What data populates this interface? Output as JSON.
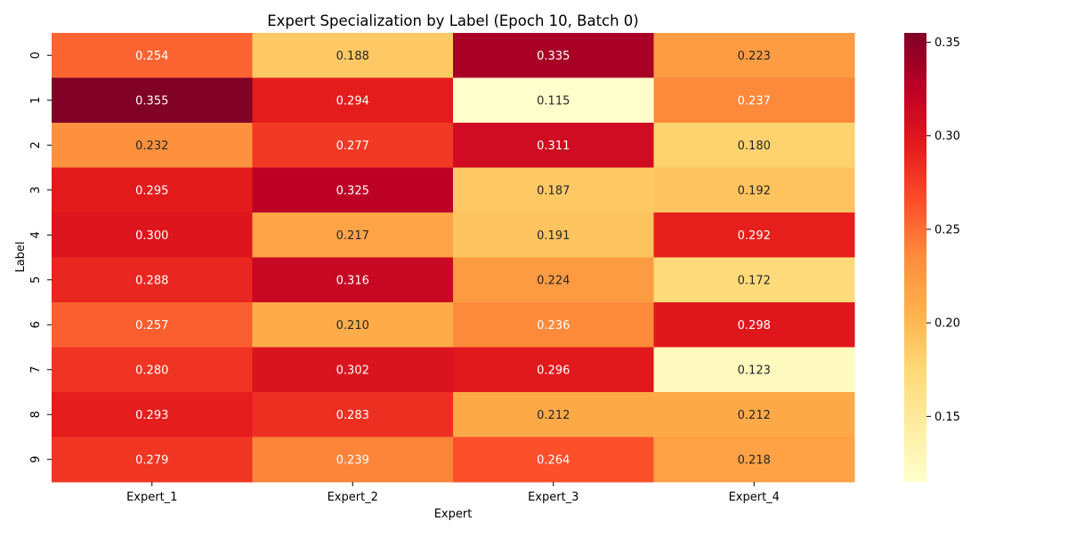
{
  "chart_data": {
    "type": "heatmap",
    "title": "Expert Specialization by Label (Epoch 10, Batch 0)",
    "xlabel": "Expert",
    "ylabel": "Label",
    "x_categories": [
      "Expert_1",
      "Expert_2",
      "Expert_3",
      "Expert_4"
    ],
    "y_categories": [
      "0",
      "1",
      "2",
      "3",
      "4",
      "5",
      "6",
      "7",
      "8",
      "9"
    ],
    "values": [
      [
        0.254,
        0.188,
        0.335,
        0.223
      ],
      [
        0.355,
        0.294,
        0.115,
        0.237
      ],
      [
        0.232,
        0.277,
        0.311,
        0.18
      ],
      [
        0.295,
        0.325,
        0.187,
        0.192
      ],
      [
        0.3,
        0.217,
        0.191,
        0.292
      ],
      [
        0.288,
        0.316,
        0.224,
        0.172
      ],
      [
        0.257,
        0.21,
        0.236,
        0.298
      ],
      [
        0.28,
        0.302,
        0.296,
        0.123
      ],
      [
        0.293,
        0.283,
        0.212,
        0.212
      ],
      [
        0.279,
        0.239,
        0.264,
        0.218
      ]
    ],
    "value_labels": [
      [
        "0.254",
        "0.188",
        "0.335",
        "0.223"
      ],
      [
        "0.355",
        "0.294",
        "0.115",
        "0.237"
      ],
      [
        "0.232",
        "0.277",
        "0.311",
        "0.180"
      ],
      [
        "0.295",
        "0.325",
        "0.187",
        "0.192"
      ],
      [
        "0.300",
        "0.217",
        "0.191",
        "0.292"
      ],
      [
        "0.288",
        "0.316",
        "0.224",
        "0.172"
      ],
      [
        "0.257",
        "0.210",
        "0.236",
        "0.298"
      ],
      [
        "0.280",
        "0.302",
        "0.296",
        "0.123"
      ],
      [
        "0.293",
        "0.283",
        "0.212",
        "0.212"
      ],
      [
        "0.279",
        "0.239",
        "0.264",
        "0.218"
      ]
    ],
    "colormap": "YlOrRd",
    "colorbar": {
      "range": [
        0.115,
        0.355
      ],
      "ticks": [
        0.15,
        0.2,
        0.25,
        0.3,
        0.35
      ],
      "tick_labels": [
        "0.15",
        "0.20",
        "0.25",
        "0.30",
        "0.35"
      ]
    },
    "annotation_threshold": 0.235,
    "annotation_colors": {
      "dark_bg": "#ffffff",
      "light_bg": "#262626"
    },
    "grid": false
  }
}
